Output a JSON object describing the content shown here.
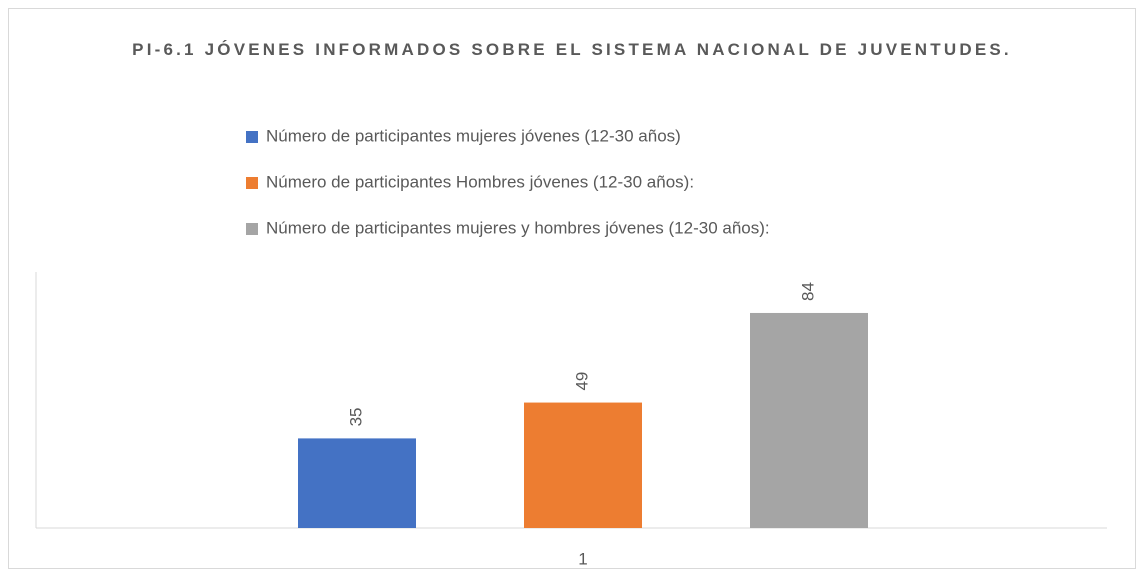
{
  "chart_data": {
    "type": "bar",
    "title": "PI-6.1 JÓVENES INFORMADOS SOBRE EL SISTEMA NACIONAL DE JUVENTUDES.",
    "categories": [
      "1"
    ],
    "series": [
      {
        "name": "Número de participantes mujeres jóvenes (12-30 años)",
        "color": "#4472c4",
        "values": [
          35
        ]
      },
      {
        "name": "Número de participantes Hombres jóvenes (12-30 años):",
        "color": "#ed7d31",
        "values": [
          49
        ]
      },
      {
        "name": "Número de participantes mujeres y hombres jóvenes (12-30 años):",
        "color": "#a5a5a5",
        "values": [
          84
        ]
      }
    ],
    "ylim": [
      0,
      100
    ],
    "legend": "top",
    "data_labels": true
  }
}
